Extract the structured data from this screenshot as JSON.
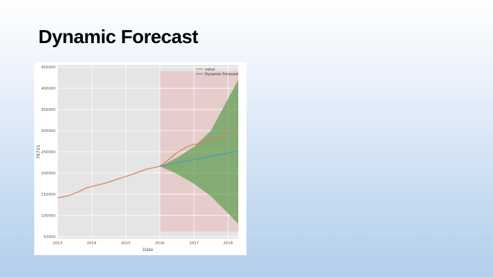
{
  "slide": {
    "title": "Dynamic Forecast"
  },
  "chart_data": {
    "type": "line",
    "xlabel": "Date",
    "ylabel": "78721",
    "xlim": [
      2013.0,
      2018.3
    ],
    "ylim": [
      45000,
      455000
    ],
    "x_ticks": [
      {
        "x": 2013,
        "label": "2013"
      },
      {
        "x": 2014,
        "label": "2014"
      },
      {
        "x": 2015,
        "label": "2015"
      },
      {
        "x": 2016,
        "label": "2016"
      },
      {
        "x": 2017,
        "label": "2017"
      },
      {
        "x": 2018,
        "label": "2018"
      }
    ],
    "y_ticks": [
      50000,
      100000,
      150000,
      200000,
      250000,
      300000,
      350000,
      400000,
      450000
    ],
    "y_tick_labels": [
      "50000",
      "100000",
      "150000",
      "200000",
      "250000",
      "300000",
      "350000",
      "400000",
      "450000"
    ],
    "grid": true,
    "legend_position": "top-right",
    "series": [
      {
        "name": "value",
        "color": "#e07a5f",
        "x": [
          2013.0,
          2013.3,
          2013.6,
          2013.85,
          2014.1,
          2014.4,
          2014.7,
          2015.0,
          2015.3,
          2015.6,
          2015.85,
          2016.0,
          2016.2,
          2016.5,
          2016.8,
          2017.0,
          2017.2,
          2017.5,
          2017.7,
          2018.0,
          2018.25
        ],
        "y": [
          141000,
          146000,
          155000,
          165000,
          170000,
          176000,
          184000,
          192000,
          200000,
          209000,
          213000,
          216000,
          228000,
          248000,
          262000,
          268000,
          269000,
          279000,
          283000,
          297000,
          297000
        ]
      },
      {
        "name": "Dynamic Forecast",
        "color": "#4a98c6",
        "x": [
          2016.0,
          2018.3
        ],
        "y": [
          216000,
          252000
        ]
      }
    ],
    "confidence_interval": {
      "color": "#5a9e4b",
      "x": [
        2016.0,
        2016.5,
        2017.0,
        2017.5,
        2018.0,
        2018.3
      ],
      "lower": [
        216000,
        198000,
        175000,
        145000,
        105000,
        80000
      ],
      "upper": [
        216000,
        236000,
        262000,
        300000,
        375000,
        420000
      ]
    },
    "forecast_region": {
      "color": "#e8a4a0",
      "x_start": 2016.0,
      "x_end": 2018.3,
      "y_low": 62000,
      "y_high": 440000
    }
  }
}
